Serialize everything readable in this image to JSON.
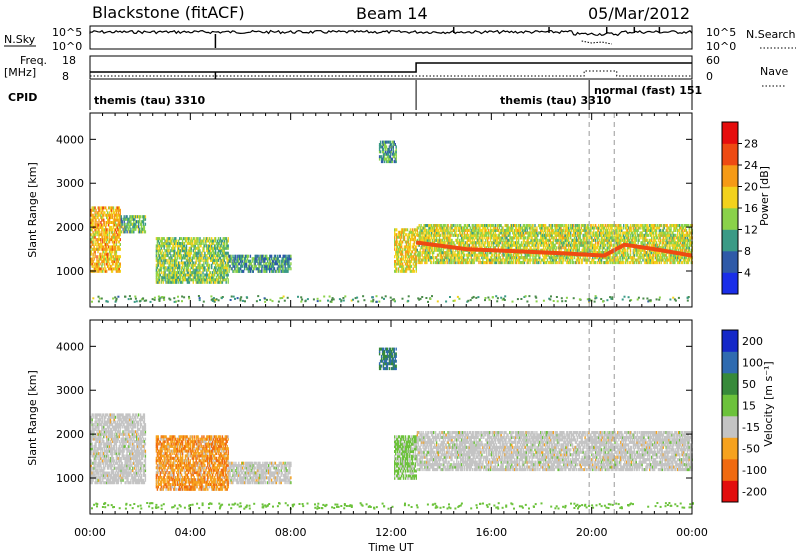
{
  "header": {
    "radar": "Blackstone (fitACF)",
    "beam": "Beam 14",
    "date": "05/Mar/2012"
  },
  "status_panels": {
    "nsky_label": "N.Sky",
    "nsky_ticks": [
      "10^5",
      "10^0"
    ],
    "nsearch_label": "N.Search",
    "nsearch_ticks": [
      "10^5",
      "10^0"
    ],
    "freq_label": "Freq.",
    "freq_unit": "[MHz]",
    "freq_ticks": [
      "18",
      "8"
    ],
    "nave_label": "Nave",
    "nave_ticks": [
      "60",
      "0"
    ],
    "cpid_label": "CPID",
    "cpid_segments": [
      {
        "label": "themis (tau) 3310",
        "start_hour": 0.0
      },
      {
        "label": "themis (tau) 3310",
        "start_hour": 13.0
      },
      {
        "label": "normal (fast) 151",
        "start_hour": 19.9
      }
    ]
  },
  "chart_data": [
    {
      "type": "heatmap",
      "name": "power",
      "xlabel": "Time UT",
      "ylabel": "Slant Range [km]",
      "xlim": [
        0,
        24
      ],
      "ylim": [
        180,
        4600
      ],
      "x_ticks": [
        "00:00",
        "04:00",
        "08:00",
        "12:00",
        "16:00",
        "20:00",
        "00:00"
      ],
      "y_ticks": [
        1000,
        2000,
        3000,
        4000
      ],
      "colorbar": {
        "label": "Power [dB]",
        "ticks": [
          4,
          8,
          12,
          16,
          20,
          24,
          28
        ],
        "range": [
          0,
          32
        ],
        "colors": [
          "#1a2ee8",
          "#2f5aa8",
          "#3a9a86",
          "#8ad24a",
          "#f3d21c",
          "#f59a16",
          "#ee4a12",
          "#e60d0d"
        ]
      },
      "regions": [
        {
          "t0": 0.0,
          "t1": 1.2,
          "r0": 1000,
          "r1": 2500,
          "value": 20
        },
        {
          "t0": 1.2,
          "t1": 2.2,
          "r0": 1900,
          "r1": 2300,
          "value": 12
        },
        {
          "t0": 2.6,
          "t1": 5.5,
          "r0": 750,
          "r1": 1800,
          "value": 14
        },
        {
          "t0": 5.5,
          "t1": 8.0,
          "r0": 1000,
          "r1": 1400,
          "value": 10
        },
        {
          "t0": 11.5,
          "t1": 12.2,
          "r0": 3500,
          "r1": 4000,
          "value": 10
        },
        {
          "t0": 12.1,
          "t1": 13.0,
          "r0": 1000,
          "r1": 2000,
          "value": 18
        },
        {
          "t0": 13.0,
          "t1": 24.0,
          "r0": 1200,
          "r1": 2100,
          "value": 16
        }
      ],
      "traces": [
        {
          "t": [
            13.0,
            15.0,
            17.0,
            19.0,
            20.5,
            21.3,
            22.5,
            24.0
          ],
          "r": [
            1650,
            1500,
            1450,
            1400,
            1350,
            1600,
            1500,
            1350
          ],
          "value": 26
        }
      ],
      "markers_hours": [
        19.9,
        20.9
      ]
    },
    {
      "type": "heatmap",
      "name": "velocity",
      "xlabel": "Time UT",
      "ylabel": "Slant Range [km]",
      "xlim": [
        0,
        24
      ],
      "ylim": [
        180,
        4600
      ],
      "x_ticks": [
        "00:00",
        "04:00",
        "08:00",
        "12:00",
        "16:00",
        "20:00",
        "00:00"
      ],
      "y_ticks": [
        1000,
        2000,
        3000,
        4000
      ],
      "colorbar": {
        "label": "Velocity [m s⁻¹]",
        "ticks": [
          "200",
          "100",
          "50",
          "15",
          "-15",
          "-50",
          "-100",
          "-200"
        ],
        "colors": [
          "#1528c8",
          "#2f6bb0",
          "#378a3a",
          "#6cc23b",
          "#c4c4c4",
          "#f6a21e",
          "#f06a10",
          "#e20d0d"
        ]
      },
      "regions": [
        {
          "t0": 0.0,
          "t1": 2.2,
          "r0": 900,
          "r1": 2500,
          "value": "-15..15"
        },
        {
          "t0": 2.6,
          "t1": 5.5,
          "r0": 750,
          "r1": 2000,
          "value": "-50..-100"
        },
        {
          "t0": 5.5,
          "t1": 8.0,
          "r0": 900,
          "r1": 1400,
          "value": "-15..15"
        },
        {
          "t0": 11.5,
          "t1": 12.2,
          "r0": 3500,
          "r1": 4000,
          "value": "50..100"
        },
        {
          "t0": 12.1,
          "t1": 13.0,
          "r0": 1000,
          "r1": 2000,
          "value": "15..50"
        },
        {
          "t0": 13.0,
          "t1": 24.0,
          "r0": 1200,
          "r1": 2100,
          "value": "-15..15"
        }
      ],
      "markers_hours": [
        19.9,
        20.9
      ]
    }
  ]
}
